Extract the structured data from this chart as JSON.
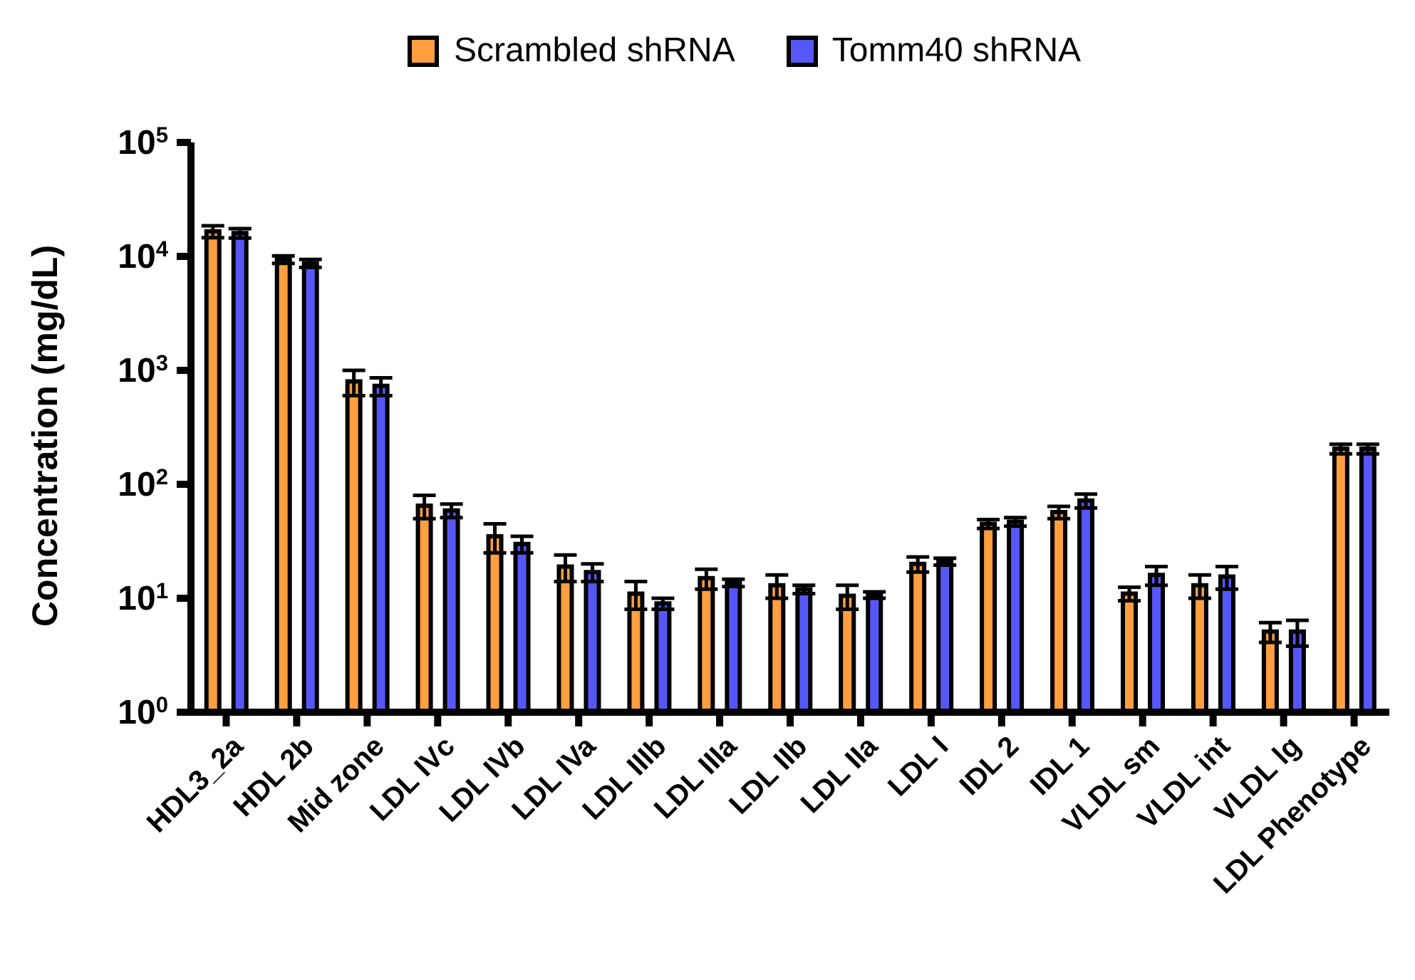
{
  "chart_data": {
    "type": "bar",
    "ylabel": "Concentration (mg/dL)",
    "log": true,
    "legend": "top",
    "grid": false,
    "categories": [
      "HDL3_2a",
      "HDL 2b",
      "Mid zone",
      "LDL IVc",
      "LDL IVb",
      "LDL IVa",
      "LDL IIIb",
      "LDL IIIa",
      "LDL IIb",
      "LDL IIa",
      "LDL I",
      "IDL 2",
      "IDL 1",
      "VLDL sm",
      "VLDL int",
      "VLDL lg",
      "LDL Phenotype"
    ],
    "ylim": [
      1,
      100000
    ],
    "yticks": [
      {
        "value": 1,
        "label": "10$^{0}$"
      },
      {
        "value": 10,
        "label": "10$^{1}$"
      },
      {
        "value": 100,
        "label": "10$^{2}$"
      },
      {
        "value": 1000,
        "label": "10$^{3}$"
      },
      {
        "value": 10000,
        "label": "10$^{4}$"
      },
      {
        "value": 100000,
        "label": "10$^{5}$"
      }
    ],
    "series": [
      {
        "name": "Scrambled shRNA",
        "color": "#ff9f40",
        "values": [
          16600,
          9400,
          800,
          65,
          35,
          19,
          11,
          15,
          13,
          10.5,
          20,
          45,
          57,
          11,
          13,
          5.1,
          205
        ],
        "errors": [
          2000,
          700,
          200,
          15,
          10,
          5,
          3,
          3,
          3,
          2.5,
          3,
          4,
          7,
          1.5,
          3,
          1,
          20
        ]
      },
      {
        "name": "Tomm40 shRNA",
        "color": "#5757f7",
        "values": [
          16000,
          8700,
          730,
          59,
          30,
          17,
          9,
          13.7,
          12,
          10.7,
          21,
          47,
          72,
          16,
          15.5,
          5.1,
          205
        ],
        "errors": [
          1500,
          700,
          130,
          8,
          5,
          3,
          1,
          1,
          1,
          0.7,
          1.5,
          4,
          10,
          3,
          3.5,
          1.3,
          20
        ]
      }
    ]
  }
}
